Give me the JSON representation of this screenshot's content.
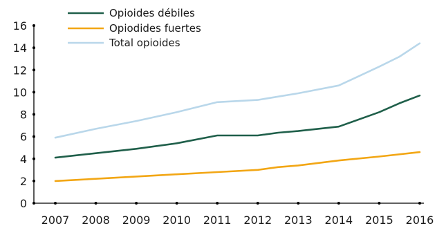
{
  "chart_data": {
    "type": "line",
    "x": [
      "2007",
      "2008",
      "2009",
      "2010",
      "2011",
      "2012",
      "2013",
      "2014",
      "2015",
      "2016"
    ],
    "y_ticks": [
      0,
      2,
      4,
      6,
      8,
      10,
      12,
      14,
      16
    ],
    "ylim": [
      0,
      16
    ],
    "grid": false,
    "legend_position": "top-left",
    "series": [
      {
        "name": "Opioides débiles",
        "color": "#1f5f4a",
        "points": [
          [
            2007,
            4.1
          ],
          [
            2008,
            4.5
          ],
          [
            2009,
            4.9
          ],
          [
            2010,
            5.4
          ],
          [
            2011,
            6.1
          ],
          [
            2012,
            6.1
          ],
          [
            2012.5,
            6.35
          ],
          [
            2013,
            6.5
          ],
          [
            2014,
            6.9
          ],
          [
            2015,
            8.2
          ],
          [
            2015.5,
            9.0
          ],
          [
            2016,
            9.7
          ]
        ]
      },
      {
        "name": "Opiodides fuertes",
        "color": "#f2a614",
        "points": [
          [
            2007,
            2.0
          ],
          [
            2008,
            2.2
          ],
          [
            2009,
            2.4
          ],
          [
            2010,
            2.6
          ],
          [
            2011,
            2.8
          ],
          [
            2012,
            3.0
          ],
          [
            2012.5,
            3.25
          ],
          [
            2013,
            3.4
          ],
          [
            2014,
            3.85
          ],
          [
            2015,
            4.2
          ],
          [
            2016,
            4.6
          ]
        ]
      },
      {
        "name": "Total opioides",
        "color": "#b9d7ea",
        "points": [
          [
            2007,
            5.9
          ],
          [
            2008,
            6.7
          ],
          [
            2009,
            7.4
          ],
          [
            2010,
            8.2
          ],
          [
            2011,
            9.1
          ],
          [
            2012,
            9.3
          ],
          [
            2013,
            9.9
          ],
          [
            2014,
            10.6
          ],
          [
            2015,
            12.3
          ],
          [
            2015.5,
            13.2
          ],
          [
            2016,
            14.4
          ]
        ]
      }
    ]
  }
}
